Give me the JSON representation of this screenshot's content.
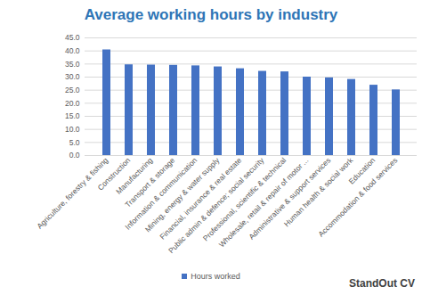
{
  "chart_data": {
    "type": "bar",
    "title": "Average working hours by industry",
    "categories": [
      "Agriculture, forestry & fishing",
      "Construction",
      "Manufacturing",
      "Transport & storage",
      "Information & communication",
      "Mining, energy & water supply",
      "Financial, insurance & real estate",
      "Public admin & defence; social security",
      "Professional, scientific & technical",
      "Wholesale, retail & repair of motor ...",
      "Administrative & support services",
      "Human health & social work",
      "Education",
      "Accommodation & food services"
    ],
    "series": [
      {
        "name": "Hours worked",
        "color": "#4472c4",
        "values": [
          40.4,
          34.7,
          34.6,
          34.5,
          34.3,
          33.9,
          33.2,
          32.2,
          32.0,
          30.0,
          29.7,
          29.1,
          26.9,
          25.1
        ]
      }
    ],
    "ylim": [
      0,
      45
    ],
    "yticks": [
      {
        "value": 0,
        "label": "0.0"
      },
      {
        "value": 5,
        "label": "5.0"
      },
      {
        "value": 10,
        "label": "10.0"
      },
      {
        "value": 15,
        "label": "15.0"
      },
      {
        "value": 20,
        "label": "20.0"
      },
      {
        "value": 25,
        "label": "25.0"
      },
      {
        "value": 30,
        "label": "30.0"
      },
      {
        "value": 35,
        "label": "35.0"
      },
      {
        "value": 40,
        "label": "40.0"
      },
      {
        "value": 45,
        "label": "45.0"
      }
    ],
    "grid": true,
    "legend": "bottom",
    "annotations": [
      "StandOut CV"
    ]
  }
}
